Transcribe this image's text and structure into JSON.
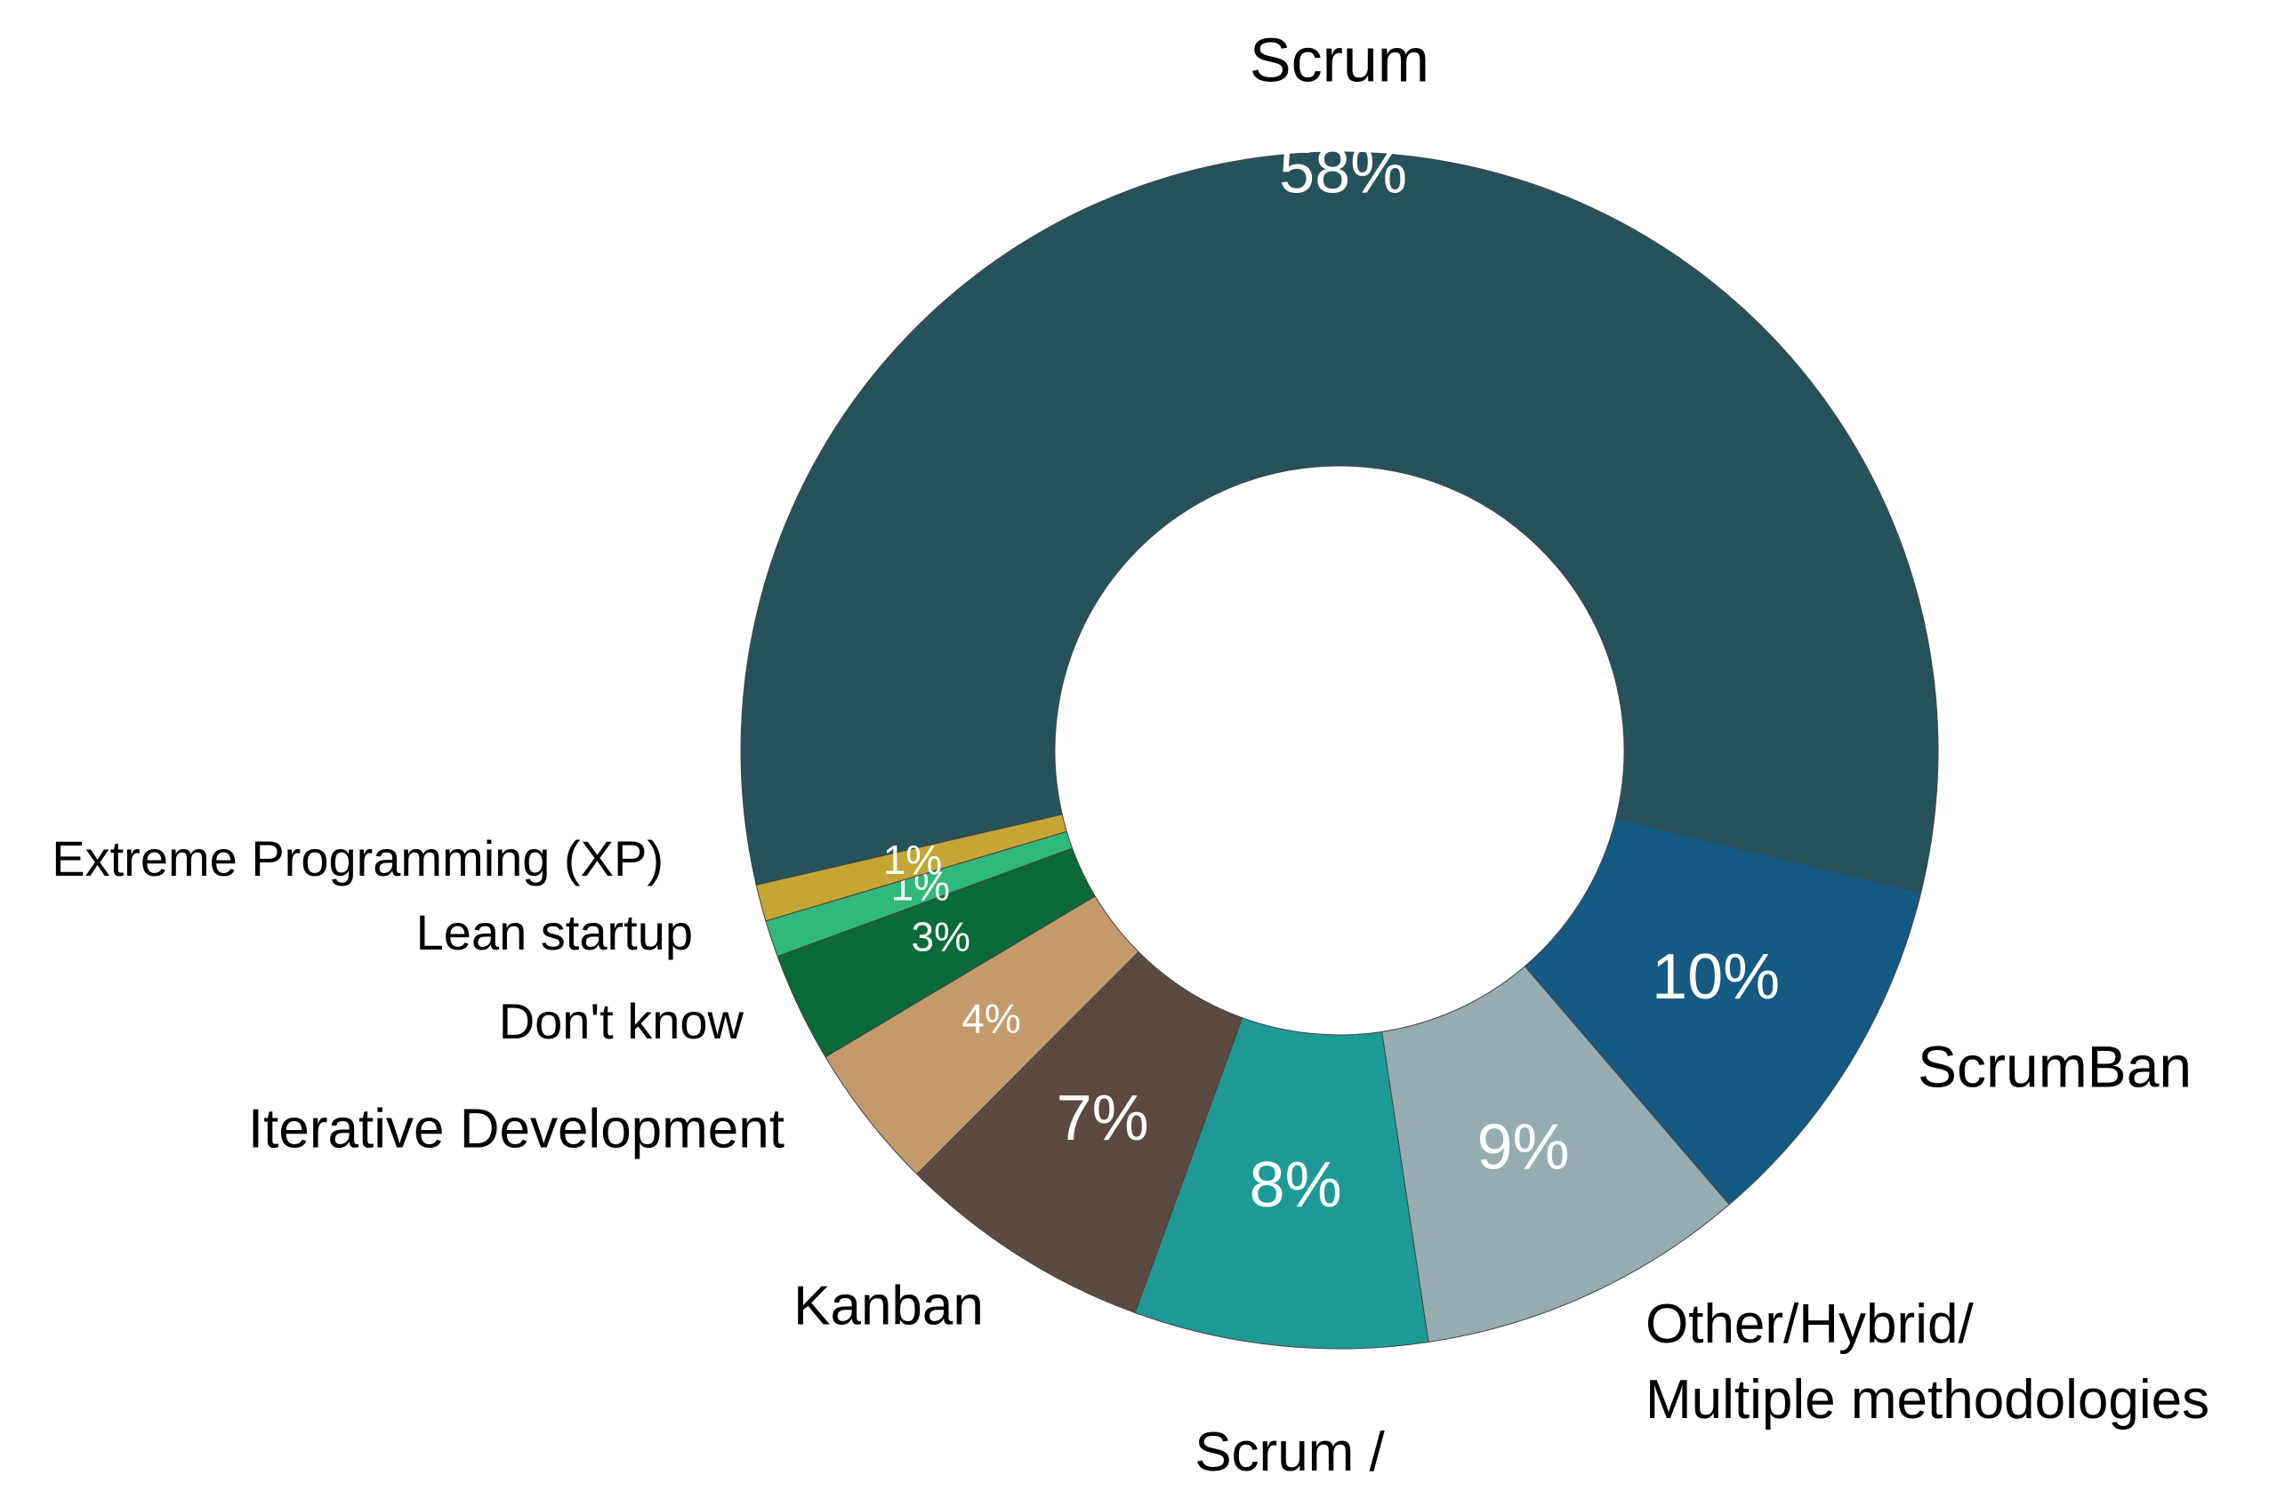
{
  "chart_data": {
    "type": "donut",
    "categories": [
      "Scrum",
      "ScrumBan",
      "Other/Hybrid/ Multiple methodologies",
      "Scrum / XP hybrid",
      "Kanban",
      "Iterative Development",
      "Don't know",
      "Lean startup",
      "Extreme Programming (XP)"
    ],
    "values": [
      58,
      10,
      9,
      8,
      7,
      4,
      3,
      1,
      1
    ],
    "value_labels": [
      "58%",
      "10%",
      "9%",
      "8%",
      "7%",
      "4%",
      "3%",
      "1%",
      "1%"
    ],
    "colors": [
      "#26535a",
      "#145a82",
      "#96acb0",
      "#1e9a96",
      "#5a4a42",
      "#c49a6c",
      "#0a6a3a",
      "#2eb87a",
      "#c4a535"
    ]
  }
}
